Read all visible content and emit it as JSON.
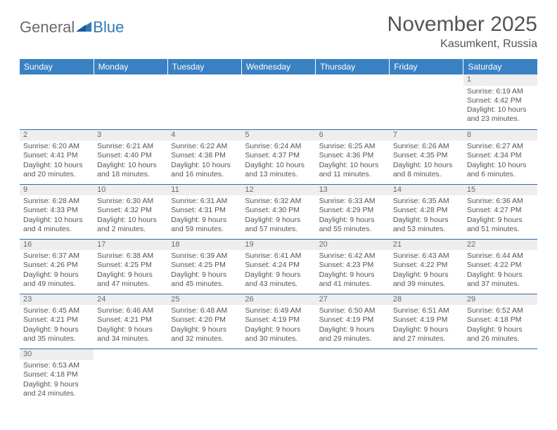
{
  "logo": {
    "text1": "General",
    "text2": "Blue"
  },
  "title": "November 2025",
  "location": "Kasumkent, Russia",
  "colors": {
    "header_bg": "#3a81c4",
    "header_text": "#ffffff",
    "border": "#2f6aa8",
    "daynum_bg": "#eeeeee",
    "text": "#555555",
    "title_text": "#545454",
    "logo_gray": "#6a6a6a",
    "logo_blue": "#2f77b8"
  },
  "weekdays": [
    "Sunday",
    "Monday",
    "Tuesday",
    "Wednesday",
    "Thursday",
    "Friday",
    "Saturday"
  ],
  "weeks": [
    [
      null,
      null,
      null,
      null,
      null,
      null,
      {
        "day": "1",
        "sunrise": "Sunrise: 6:19 AM",
        "sunset": "Sunset: 4:42 PM",
        "daylight": "Daylight: 10 hours and 23 minutes."
      }
    ],
    [
      {
        "day": "2",
        "sunrise": "Sunrise: 6:20 AM",
        "sunset": "Sunset: 4:41 PM",
        "daylight": "Daylight: 10 hours and 20 minutes."
      },
      {
        "day": "3",
        "sunrise": "Sunrise: 6:21 AM",
        "sunset": "Sunset: 4:40 PM",
        "daylight": "Daylight: 10 hours and 18 minutes."
      },
      {
        "day": "4",
        "sunrise": "Sunrise: 6:22 AM",
        "sunset": "Sunset: 4:38 PM",
        "daylight": "Daylight: 10 hours and 16 minutes."
      },
      {
        "day": "5",
        "sunrise": "Sunrise: 6:24 AM",
        "sunset": "Sunset: 4:37 PM",
        "daylight": "Daylight: 10 hours and 13 minutes."
      },
      {
        "day": "6",
        "sunrise": "Sunrise: 6:25 AM",
        "sunset": "Sunset: 4:36 PM",
        "daylight": "Daylight: 10 hours and 11 minutes."
      },
      {
        "day": "7",
        "sunrise": "Sunrise: 6:26 AM",
        "sunset": "Sunset: 4:35 PM",
        "daylight": "Daylight: 10 hours and 8 minutes."
      },
      {
        "day": "8",
        "sunrise": "Sunrise: 6:27 AM",
        "sunset": "Sunset: 4:34 PM",
        "daylight": "Daylight: 10 hours and 6 minutes."
      }
    ],
    [
      {
        "day": "9",
        "sunrise": "Sunrise: 6:28 AM",
        "sunset": "Sunset: 4:33 PM",
        "daylight": "Daylight: 10 hours and 4 minutes."
      },
      {
        "day": "10",
        "sunrise": "Sunrise: 6:30 AM",
        "sunset": "Sunset: 4:32 PM",
        "daylight": "Daylight: 10 hours and 2 minutes."
      },
      {
        "day": "11",
        "sunrise": "Sunrise: 6:31 AM",
        "sunset": "Sunset: 4:31 PM",
        "daylight": "Daylight: 9 hours and 59 minutes."
      },
      {
        "day": "12",
        "sunrise": "Sunrise: 6:32 AM",
        "sunset": "Sunset: 4:30 PM",
        "daylight": "Daylight: 9 hours and 57 minutes."
      },
      {
        "day": "13",
        "sunrise": "Sunrise: 6:33 AM",
        "sunset": "Sunset: 4:29 PM",
        "daylight": "Daylight: 9 hours and 55 minutes."
      },
      {
        "day": "14",
        "sunrise": "Sunrise: 6:35 AM",
        "sunset": "Sunset: 4:28 PM",
        "daylight": "Daylight: 9 hours and 53 minutes."
      },
      {
        "day": "15",
        "sunrise": "Sunrise: 6:36 AM",
        "sunset": "Sunset: 4:27 PM",
        "daylight": "Daylight: 9 hours and 51 minutes."
      }
    ],
    [
      {
        "day": "16",
        "sunrise": "Sunrise: 6:37 AM",
        "sunset": "Sunset: 4:26 PM",
        "daylight": "Daylight: 9 hours and 49 minutes."
      },
      {
        "day": "17",
        "sunrise": "Sunrise: 6:38 AM",
        "sunset": "Sunset: 4:25 PM",
        "daylight": "Daylight: 9 hours and 47 minutes."
      },
      {
        "day": "18",
        "sunrise": "Sunrise: 6:39 AM",
        "sunset": "Sunset: 4:25 PM",
        "daylight": "Daylight: 9 hours and 45 minutes."
      },
      {
        "day": "19",
        "sunrise": "Sunrise: 6:41 AM",
        "sunset": "Sunset: 4:24 PM",
        "daylight": "Daylight: 9 hours and 43 minutes."
      },
      {
        "day": "20",
        "sunrise": "Sunrise: 6:42 AM",
        "sunset": "Sunset: 4:23 PM",
        "daylight": "Daylight: 9 hours and 41 minutes."
      },
      {
        "day": "21",
        "sunrise": "Sunrise: 6:43 AM",
        "sunset": "Sunset: 4:22 PM",
        "daylight": "Daylight: 9 hours and 39 minutes."
      },
      {
        "day": "22",
        "sunrise": "Sunrise: 6:44 AM",
        "sunset": "Sunset: 4:22 PM",
        "daylight": "Daylight: 9 hours and 37 minutes."
      }
    ],
    [
      {
        "day": "23",
        "sunrise": "Sunrise: 6:45 AM",
        "sunset": "Sunset: 4:21 PM",
        "daylight": "Daylight: 9 hours and 35 minutes."
      },
      {
        "day": "24",
        "sunrise": "Sunrise: 6:46 AM",
        "sunset": "Sunset: 4:21 PM",
        "daylight": "Daylight: 9 hours and 34 minutes."
      },
      {
        "day": "25",
        "sunrise": "Sunrise: 6:48 AM",
        "sunset": "Sunset: 4:20 PM",
        "daylight": "Daylight: 9 hours and 32 minutes."
      },
      {
        "day": "26",
        "sunrise": "Sunrise: 6:49 AM",
        "sunset": "Sunset: 4:19 PM",
        "daylight": "Daylight: 9 hours and 30 minutes."
      },
      {
        "day": "27",
        "sunrise": "Sunrise: 6:50 AM",
        "sunset": "Sunset: 4:19 PM",
        "daylight": "Daylight: 9 hours and 29 minutes."
      },
      {
        "day": "28",
        "sunrise": "Sunrise: 6:51 AM",
        "sunset": "Sunset: 4:19 PM",
        "daylight": "Daylight: 9 hours and 27 minutes."
      },
      {
        "day": "29",
        "sunrise": "Sunrise: 6:52 AM",
        "sunset": "Sunset: 4:18 PM",
        "daylight": "Daylight: 9 hours and 26 minutes."
      }
    ],
    [
      {
        "day": "30",
        "sunrise": "Sunrise: 6:53 AM",
        "sunset": "Sunset: 4:18 PM",
        "daylight": "Daylight: 9 hours and 24 minutes."
      },
      null,
      null,
      null,
      null,
      null,
      null
    ]
  ]
}
